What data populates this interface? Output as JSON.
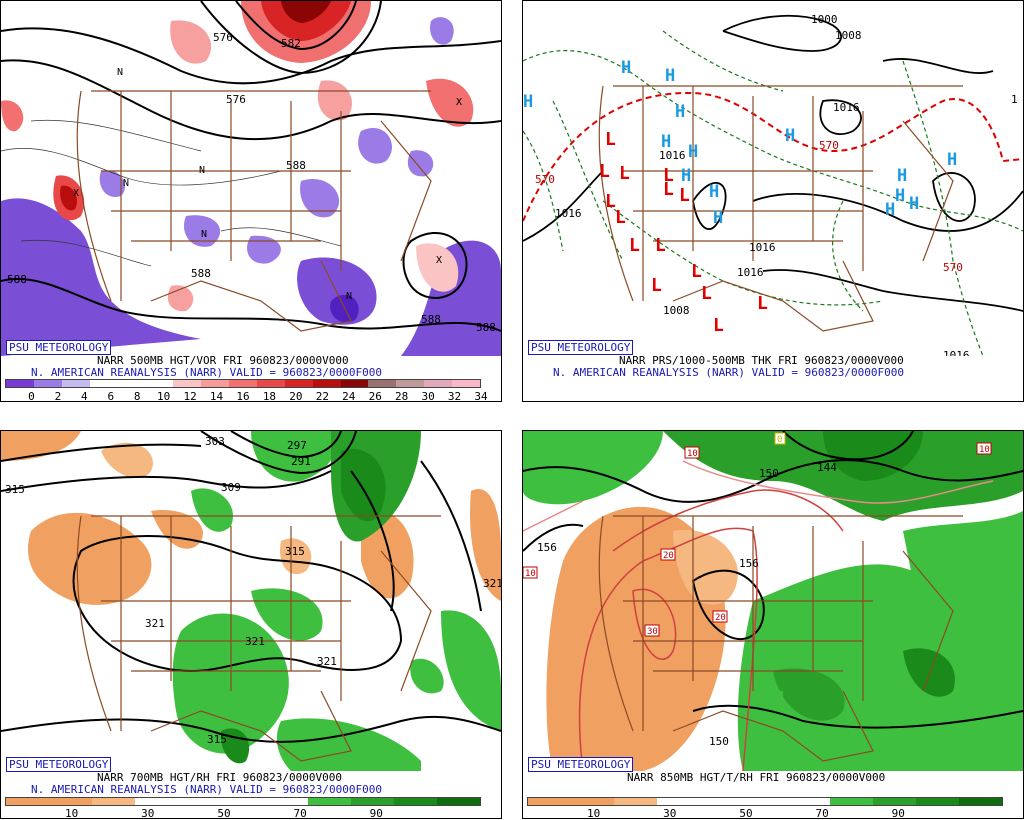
{
  "badge": "PSU METEOROLOGY",
  "panels": {
    "p500": {
      "caption1": "NARR 500MB HGT/VOR FRI 960823/0000V000",
      "caption2": "N. AMERICAN REANALYSIS (NARR) VALID = 960823/0000F000",
      "colorbar": [
        "#7a3ad6",
        "#9b7ce6",
        "#c6b9f2",
        "#ffffff",
        "#ffffff",
        "#ffffff",
        "#fbc4c4",
        "#f79a9a",
        "#f27070",
        "#e84848",
        "#d82424",
        "#b80e0e",
        "#8a0505",
        "#9a7070",
        "#c09a9a",
        "#e0a8b8",
        "#f8b8c8"
      ],
      "ticks": [
        "0",
        "2",
        "4",
        "6",
        "8",
        "10",
        "12",
        "14",
        "16",
        "18",
        "20",
        "22",
        "24",
        "26",
        "28",
        "30",
        "32",
        "34"
      ],
      "labels": [
        "576",
        "582",
        "576",
        "588",
        "588",
        "588",
        "588",
        "588"
      ],
      "N": "N",
      "X": "X"
    },
    "pprs": {
      "caption1": "NARR PRS/1000-500MB THK FRI 960823/0000V000",
      "caption2": "N. AMERICAN REANALYSIS (NARR) VALID = 960823/0000F000",
      "labels": [
        "1000",
        "1008",
        "1016",
        "1016",
        "1016",
        "1016",
        "1016",
        "1008",
        "1016",
        "570",
        "570",
        "570",
        "1016",
        "1008",
        "1"
      ],
      "H": "H",
      "L": "L"
    },
    "p700": {
      "caption1": "NARR 700MB HGT/RH FRI 960823/0000V000",
      "caption2": "N. AMERICAN REANALYSIS (NARR) VALID = 960823/0000F000",
      "colorbar": [
        "#f0a060",
        "#f0a060",
        "#f5b880",
        "#ffffff",
        "#ffffff",
        "#ffffff",
        "#ffffff",
        "#3fbf3f",
        "#2aa02a",
        "#1a8a1a",
        "#0e6e0e"
      ],
      "ticks": [
        "10",
        "30",
        "50",
        "70",
        "90"
      ],
      "labels": [
        "303",
        "297",
        "291",
        "315",
        "309",
        "315",
        "321",
        "321",
        "321",
        "321",
        "315"
      ]
    },
    "p850": {
      "caption1": "NARR 850MB HGT/T/RH FRI 960823/0000V000",
      "colorbar": [
        "#f0a060",
        "#f0a060",
        "#f5b880",
        "#ffffff",
        "#ffffff",
        "#ffffff",
        "#ffffff",
        "#3fbf3f",
        "#2aa02a",
        "#1a8a1a",
        "#0e6e0e"
      ],
      "ticks": [
        "10",
        "30",
        "50",
        "70",
        "90"
      ],
      "labels": [
        "150",
        "144",
        "156",
        "156",
        "150",
        "10",
        "10",
        "20",
        "20",
        "30",
        "10",
        "0"
      ]
    }
  }
}
